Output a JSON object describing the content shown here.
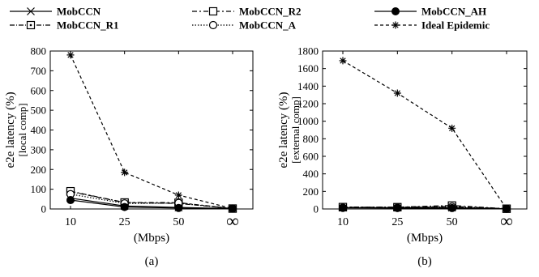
{
  "legend": [
    {
      "name": "MobCCN",
      "marker": "x",
      "dash": ""
    },
    {
      "name": "MobCCN_R1",
      "marker": "square-dot",
      "dash": "6 2 1 2"
    },
    {
      "name": "MobCCN_R2",
      "marker": "square",
      "dash": "6 3 2 3"
    },
    {
      "name": "MobCCN_A",
      "marker": "circle-open",
      "dash": "1.5 2"
    },
    {
      "name": "MobCCN_AH",
      "marker": "circle-filled",
      "dash": ""
    },
    {
      "name": "Ideal Epidemic",
      "marker": "asterisk",
      "dash": "4 3"
    }
  ],
  "chart_data": [
    {
      "type": "line",
      "categories": [
        "10",
        "25",
        "50",
        "∞"
      ],
      "ylabel": "e2e latency (%)",
      "ylabel_sub": "[local comp]",
      "xlabel": "(Mbps)",
      "caption": "(a)",
      "ylim": [
        0,
        800
      ],
      "yticks": [
        0,
        100,
        200,
        300,
        400,
        500,
        600,
        700,
        800
      ],
      "grid": false,
      "series": [
        {
          "name": "MobCCN",
          "values": [
            55,
            15,
            8,
            2
          ]
        },
        {
          "name": "MobCCN_R1",
          "values": [
            88,
            32,
            28,
            2
          ]
        },
        {
          "name": "MobCCN_R2",
          "values": [
            90,
            33,
            32,
            2
          ]
        },
        {
          "name": "MobCCN_A",
          "values": [
            75,
            28,
            30,
            2
          ]
        },
        {
          "name": "MobCCN_AH",
          "values": [
            45,
            10,
            5,
            2
          ]
        },
        {
          "name": "Ideal Epidemic",
          "values": [
            780,
            185,
            70,
            2
          ]
        }
      ]
    },
    {
      "type": "line",
      "categories": [
        "10",
        "25",
        "50",
        "∞"
      ],
      "ylabel": "e2e latency (%)",
      "ylabel_sub": "[external comp]",
      "xlabel": "(Mbps)",
      "caption": "(b)",
      "ylim": [
        0,
        1800
      ],
      "yticks": [
        0,
        200,
        400,
        600,
        800,
        1000,
        1200,
        1400,
        1600,
        1800
      ],
      "grid": false,
      "series": [
        {
          "name": "MobCCN",
          "values": [
            15,
            15,
            15,
            3
          ]
        },
        {
          "name": "MobCCN_R1",
          "values": [
            20,
            20,
            30,
            3
          ]
        },
        {
          "name": "MobCCN_R2",
          "values": [
            22,
            20,
            40,
            3
          ]
        },
        {
          "name": "MobCCN_A",
          "values": [
            15,
            15,
            25,
            3
          ]
        },
        {
          "name": "MobCCN_AH",
          "values": [
            12,
            10,
            10,
            3
          ]
        },
        {
          "name": "Ideal Epidemic",
          "values": [
            1690,
            1320,
            920,
            3
          ]
        }
      ]
    }
  ]
}
